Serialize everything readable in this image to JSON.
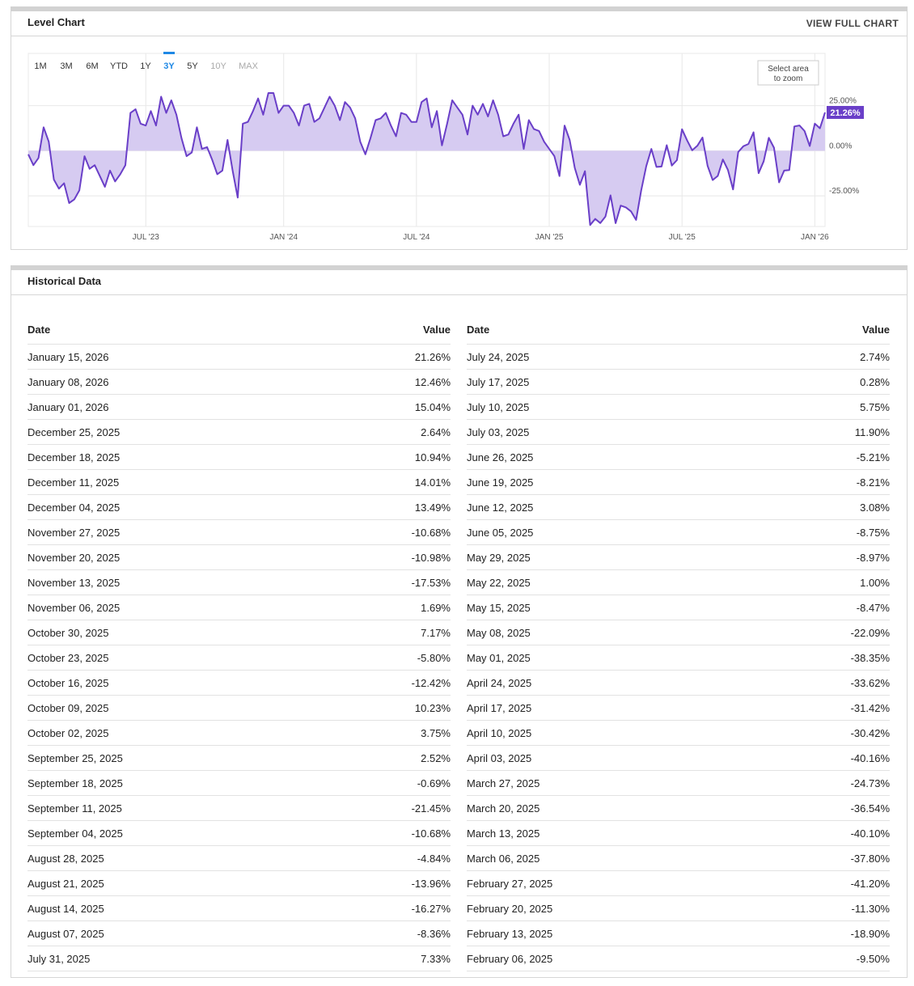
{
  "chart_panel": {
    "title": "Level Chart",
    "link": "VIEW FULL CHART",
    "range_buttons": [
      "1M",
      "3M",
      "6M",
      "YTD",
      "1Y",
      "3Y",
      "5Y",
      "10Y",
      "MAX"
    ],
    "active_range": "3Y",
    "disabled_ranges": [
      "10Y",
      "MAX"
    ],
    "zoom_hint": [
      "Select area",
      "to zoom"
    ]
  },
  "chart_data": {
    "type": "area",
    "color": "#6a3fc8",
    "fill": "#d6cbf1",
    "grid": true,
    "ylim": [
      -42,
      54
    ],
    "yticks": [
      {
        "value": 25,
        "label": "25.00%"
      },
      {
        "value": 0,
        "label": "0.00%"
      },
      {
        "value": -25,
        "label": "-25.00%"
      }
    ],
    "categories": [
      null,
      null,
      null,
      null,
      null,
      null,
      null,
      null,
      null,
      null,
      null,
      null,
      null,
      null,
      null,
      null,
      null,
      null,
      null,
      null,
      null,
      null,
      null,
      "JUL '23",
      null,
      null,
      null,
      null,
      null,
      null,
      null,
      null,
      null,
      null,
      null,
      null,
      null,
      null,
      null,
      null,
      null,
      null,
      null,
      null,
      null,
      null,
      null,
      null,
      null,
      null,
      "JAN '24",
      null,
      null,
      null,
      null,
      null,
      null,
      null,
      null,
      null,
      null,
      null,
      null,
      null,
      null,
      null,
      null,
      null,
      null,
      null,
      null,
      null,
      null,
      null,
      null,
      null,
      "JUL '24",
      null,
      null,
      null,
      null,
      null,
      null,
      null,
      null,
      null,
      null,
      null,
      null,
      null,
      null,
      null,
      null,
      null,
      null,
      null,
      null,
      null,
      null,
      null,
      null,
      null,
      "JAN '25",
      null,
      null,
      null,
      null,
      null,
      null,
      null,
      null,
      null,
      null,
      null,
      null,
      null,
      null,
      null,
      null,
      null,
      null,
      null,
      null,
      null,
      null,
      null,
      null,
      null,
      "JUL '25",
      null,
      null,
      null,
      null,
      null,
      null,
      null,
      null,
      null,
      null,
      null,
      null,
      null,
      null,
      null,
      null,
      null,
      null,
      null,
      null,
      null,
      null,
      null,
      null,
      null,
      "JAN '26",
      null,
      null
    ],
    "values": [
      -2,
      -8,
      -4,
      13,
      5,
      -16,
      -21,
      -18,
      -29,
      -27,
      -22,
      -3,
      -10,
      -8,
      -14,
      -20,
      -11,
      -17,
      -13,
      -8,
      21,
      23,
      15,
      14,
      22,
      14,
      30,
      21,
      28,
      20,
      7,
      -3,
      -1,
      13,
      1,
      2,
      -5,
      -13,
      -11,
      6,
      -11,
      -26,
      15,
      16,
      22,
      29,
      20,
      32,
      32,
      21,
      25,
      25,
      21,
      14,
      25,
      26,
      16,
      18,
      24,
      30,
      25,
      17,
      27,
      24,
      18,
      5,
      -2,
      7,
      17,
      18,
      21,
      14,
      8,
      21,
      20,
      16,
      16,
      27,
      29,
      13,
      22,
      3,
      15,
      28,
      24,
      20,
      9,
      25,
      20,
      26,
      19,
      28,
      20,
      8,
      9,
      15,
      20,
      1,
      17,
      12,
      11,
      5,
      1,
      -3,
      -14,
      14,
      6,
      -9.5,
      -18.9,
      -11.3,
      -41.2,
      -37.8,
      -40.1,
      -36.54,
      -24.73,
      -40.16,
      -30.42,
      -31.42,
      -33.62,
      -38.35,
      -22.09,
      -8.47,
      1.0,
      -8.97,
      -8.75,
      3.08,
      -8.21,
      -5.21,
      11.9,
      5.75,
      0.28,
      2.74,
      7.33,
      -8.36,
      -16.27,
      -13.96,
      -4.84,
      -10.68,
      -21.45,
      -0.69,
      2.52,
      3.75,
      10.23,
      -12.42,
      -5.8,
      7.17,
      1.69,
      -17.53,
      -10.98,
      -10.68,
      13.49,
      14.01,
      10.94,
      2.64,
      15.04,
      12.46,
      21.26
    ],
    "value_labels": [
      null,
      null,
      null,
      null,
      null,
      null,
      null,
      null,
      null,
      null,
      null,
      null,
      null,
      null,
      null,
      null,
      null,
      null,
      null,
      null,
      null,
      null,
      null,
      null,
      null,
      null,
      null,
      null,
      null,
      null,
      null,
      null,
      null,
      null,
      null,
      null,
      null,
      null,
      null,
      null,
      null,
      null,
      null,
      null,
      null,
      null,
      null,
      null,
      null,
      null,
      null,
      null,
      null,
      null,
      null,
      null,
      null,
      null,
      null,
      null,
      null,
      null,
      null,
      null,
      null,
      null,
      null,
      null,
      null,
      null,
      null,
      null,
      null,
      null,
      null,
      null,
      null,
      null,
      null,
      null,
      null,
      null,
      null,
      null,
      null,
      null,
      null,
      null,
      null,
      null,
      null,
      null,
      null,
      null,
      null,
      null,
      null,
      null,
      null,
      null,
      null,
      null,
      null,
      null,
      null,
      null,
      null,
      null,
      null,
      null,
      null,
      null,
      null,
      null,
      null,
      null,
      null,
      null,
      null,
      null,
      null,
      null,
      null,
      null,
      null,
      null,
      null,
      null,
      null,
      null,
      null,
      null,
      null,
      null,
      null,
      null,
      null,
      null,
      null,
      null,
      null,
      null,
      null,
      null,
      null,
      null,
      null,
      null,
      null,
      null,
      null,
      null,
      null,
      null,
      null,
      null,
      "21.26%"
    ]
  },
  "historical": {
    "title": "Historical Data",
    "columns": [
      {
        "headers": [
          "Date",
          "Value"
        ],
        "rows": [
          [
            "January 15, 2026",
            "21.26%"
          ],
          [
            "January 08, 2026",
            "12.46%"
          ],
          [
            "January 01, 2026",
            "15.04%"
          ],
          [
            "December 25, 2025",
            "2.64%"
          ],
          [
            "December 18, 2025",
            "10.94%"
          ],
          [
            "December 11, 2025",
            "14.01%"
          ],
          [
            "December 04, 2025",
            "13.49%"
          ],
          [
            "November 27, 2025",
            "-10.68%"
          ],
          [
            "November 20, 2025",
            "-10.98%"
          ],
          [
            "November 13, 2025",
            "-17.53%"
          ],
          [
            "November 06, 2025",
            "1.69%"
          ],
          [
            "October 30, 2025",
            "7.17%"
          ],
          [
            "October 23, 2025",
            "-5.80%"
          ],
          [
            "October 16, 2025",
            "-12.42%"
          ],
          [
            "October 09, 2025",
            "10.23%"
          ],
          [
            "October 02, 2025",
            "3.75%"
          ],
          [
            "September 25, 2025",
            "2.52%"
          ],
          [
            "September 18, 2025",
            "-0.69%"
          ],
          [
            "September 11, 2025",
            "-21.45%"
          ],
          [
            "September 04, 2025",
            "-10.68%"
          ],
          [
            "August 28, 2025",
            "-4.84%"
          ],
          [
            "August 21, 2025",
            "-13.96%"
          ],
          [
            "August 14, 2025",
            "-16.27%"
          ],
          [
            "August 07, 2025",
            "-8.36%"
          ],
          [
            "July 31, 2025",
            "7.33%"
          ]
        ]
      },
      {
        "headers": [
          "Date",
          "Value"
        ],
        "rows": [
          [
            "July 24, 2025",
            "2.74%"
          ],
          [
            "July 17, 2025",
            "0.28%"
          ],
          [
            "July 10, 2025",
            "5.75%"
          ],
          [
            "July 03, 2025",
            "11.90%"
          ],
          [
            "June 26, 2025",
            "-5.21%"
          ],
          [
            "June 19, 2025",
            "-8.21%"
          ],
          [
            "June 12, 2025",
            "3.08%"
          ],
          [
            "June 05, 2025",
            "-8.75%"
          ],
          [
            "May 29, 2025",
            "-8.97%"
          ],
          [
            "May 22, 2025",
            "1.00%"
          ],
          [
            "May 15, 2025",
            "-8.47%"
          ],
          [
            "May 08, 2025",
            "-22.09%"
          ],
          [
            "May 01, 2025",
            "-38.35%"
          ],
          [
            "April 24, 2025",
            "-33.62%"
          ],
          [
            "April 17, 2025",
            "-31.42%"
          ],
          [
            "April 10, 2025",
            "-30.42%"
          ],
          [
            "April 03, 2025",
            "-40.16%"
          ],
          [
            "March 27, 2025",
            "-24.73%"
          ],
          [
            "March 20, 2025",
            "-36.54%"
          ],
          [
            "March 13, 2025",
            "-40.10%"
          ],
          [
            "March 06, 2025",
            "-37.80%"
          ],
          [
            "February 27, 2025",
            "-41.20%"
          ],
          [
            "February 20, 2025",
            "-11.30%"
          ],
          [
            "February 13, 2025",
            "-18.90%"
          ],
          [
            "February 06, 2025",
            "-9.50%"
          ]
        ]
      }
    ]
  }
}
